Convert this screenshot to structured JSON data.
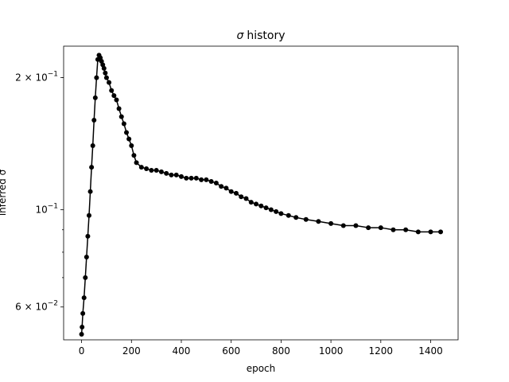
{
  "chart_data": {
    "type": "line",
    "title_symbol": "σ",
    "title_text": "history",
    "xlabel": "epoch",
    "ylabel": "inferred σ",
    "yscale": "log",
    "xlim": [
      -72,
      1510
    ],
    "ylim": [
      0.0505,
      0.236
    ],
    "x_ticks": [
      0,
      200,
      400,
      600,
      800,
      1000,
      1200,
      1400
    ],
    "x_tick_labels": [
      "0",
      "200",
      "400",
      "600",
      "800",
      "1000",
      "1200",
      "1400"
    ],
    "y_major_ticks": [
      {
        "value": 0.2,
        "mantissa": "2",
        "exponent": "−1"
      },
      {
        "value": 0.1,
        "mantissa": "10",
        "exponent": "−1",
        "plain_power": true
      },
      {
        "value": 0.06,
        "mantissa": "6",
        "exponent": "−2"
      }
    ],
    "y_minor_ticks": [
      0.05,
      0.07,
      0.08,
      0.09,
      0.2,
      0.3
    ],
    "grid": false,
    "marker": "circle",
    "color": "#000000",
    "series": [
      {
        "points": [
          [
            0,
            0.052
          ],
          [
            2,
            0.054
          ],
          [
            5,
            0.058
          ],
          [
            10,
            0.063
          ],
          [
            15,
            0.07
          ],
          [
            20,
            0.078
          ],
          [
            25,
            0.087
          ],
          [
            30,
            0.097
          ],
          [
            35,
            0.11
          ],
          [
            40,
            0.125
          ],
          [
            45,
            0.14
          ],
          [
            50,
            0.16
          ],
          [
            55,
            0.18
          ],
          [
            60,
            0.2
          ],
          [
            65,
            0.22
          ],
          [
            70,
            0.225
          ],
          [
            75,
            0.222
          ],
          [
            80,
            0.218
          ],
          [
            85,
            0.214
          ],
          [
            90,
            0.21
          ],
          [
            95,
            0.205
          ],
          [
            100,
            0.2
          ],
          [
            110,
            0.195
          ],
          [
            120,
            0.187
          ],
          [
            130,
            0.182
          ],
          [
            140,
            0.178
          ],
          [
            150,
            0.17
          ],
          [
            160,
            0.163
          ],
          [
            170,
            0.157
          ],
          [
            180,
            0.15
          ],
          [
            190,
            0.145
          ],
          [
            200,
            0.14
          ],
          [
            210,
            0.133
          ],
          [
            220,
            0.128
          ],
          [
            240,
            0.125
          ],
          [
            260,
            0.124
          ],
          [
            280,
            0.123
          ],
          [
            300,
            0.123
          ],
          [
            320,
            0.122
          ],
          [
            340,
            0.121
          ],
          [
            360,
            0.12
          ],
          [
            380,
            0.12
          ],
          [
            400,
            0.119
          ],
          [
            420,
            0.118
          ],
          [
            440,
            0.118
          ],
          [
            460,
            0.118
          ],
          [
            480,
            0.117
          ],
          [
            500,
            0.117
          ],
          [
            520,
            0.116
          ],
          [
            540,
            0.115
          ],
          [
            560,
            0.113
          ],
          [
            580,
            0.112
          ],
          [
            600,
            0.11
          ],
          [
            620,
            0.109
          ],
          [
            640,
            0.107
          ],
          [
            660,
            0.106
          ],
          [
            680,
            0.104
          ],
          [
            700,
            0.103
          ],
          [
            720,
            0.102
          ],
          [
            740,
            0.101
          ],
          [
            760,
            0.1
          ],
          [
            780,
            0.099
          ],
          [
            800,
            0.098
          ],
          [
            830,
            0.097
          ],
          [
            860,
            0.096
          ],
          [
            900,
            0.095
          ],
          [
            950,
            0.094
          ],
          [
            1000,
            0.093
          ],
          [
            1050,
            0.092
          ],
          [
            1100,
            0.092
          ],
          [
            1150,
            0.091
          ],
          [
            1200,
            0.091
          ],
          [
            1250,
            0.09
          ],
          [
            1300,
            0.09
          ],
          [
            1350,
            0.089
          ],
          [
            1400,
            0.089
          ],
          [
            1440,
            0.089
          ]
        ]
      }
    ]
  }
}
